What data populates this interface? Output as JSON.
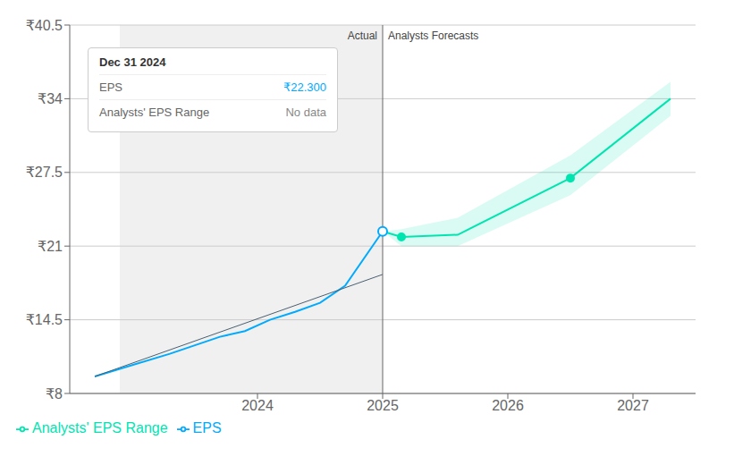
{
  "chart_data": {
    "type": "line",
    "xlim": [
      2022.5,
      2027.5
    ],
    "xticks": [
      2024,
      2025,
      2026,
      2027
    ],
    "ylim": [
      8,
      40.5
    ],
    "yticks": [
      {
        "value": 8,
        "label": "₹8"
      },
      {
        "value": 14.5,
        "label": "₹14.5"
      },
      {
        "value": 21,
        "label": "₹21"
      },
      {
        "value": 27.5,
        "label": "₹27.5"
      },
      {
        "value": 34,
        "label": "₹34"
      },
      {
        "value": 40.5,
        "label": "₹40.5"
      }
    ],
    "grid": true,
    "legend": "bottom left",
    "annotations": [
      "Actual",
      "Analysts Forecasts"
    ],
    "divider_x": 2025.0,
    "shaded_x": [
      2022.9,
      2025.0
    ],
    "tooltip": {
      "title": "Dec 31 2024",
      "rows": [
        {
          "label": "EPS",
          "value": "₹22.300"
        },
        {
          "label": "Analysts' EPS Range",
          "value": "No data"
        }
      ]
    },
    "series": [
      {
        "name": "EPS",
        "color": "#00aaff",
        "x": [
          2022.7,
          2023.0,
          2023.3,
          2023.7,
          2023.9,
          2024.1,
          2024.3,
          2024.5,
          2024.7,
          2025.0
        ],
        "values": [
          9.5,
          10.5,
          11.5,
          13.0,
          13.5,
          14.5,
          15.2,
          16.0,
          17.5,
          22.3
        ]
      },
      {
        "color": "#4a6070",
        "x": [
          2022.7,
          2025.0
        ],
        "values": [
          9.5,
          18.5
        ]
      },
      {
        "name": "Analysts' EPS Range",
        "color": "#00e5b0",
        "x": [
          2025.0,
          2025.15,
          2025.6,
          2026.5,
          2027.3
        ],
        "values": [
          22.3,
          21.8,
          22.0,
          27.0,
          34.0
        ],
        "lower": [
          22.3,
          21.0,
          21.0,
          25.5,
          32.5
        ],
        "upper": [
          22.3,
          22.5,
          23.5,
          29.0,
          35.5
        ]
      },
      {
        "type": "scatter",
        "marker": "hollow",
        "color": "#00aaff",
        "x": [
          2025.0
        ],
        "values": [
          22.3
        ]
      },
      {
        "type": "scatter",
        "marker": "circle",
        "color": "#00e5b0",
        "x": [
          2025.15,
          2026.5
        ],
        "values": [
          21.8,
          27.0
        ]
      }
    ]
  }
}
